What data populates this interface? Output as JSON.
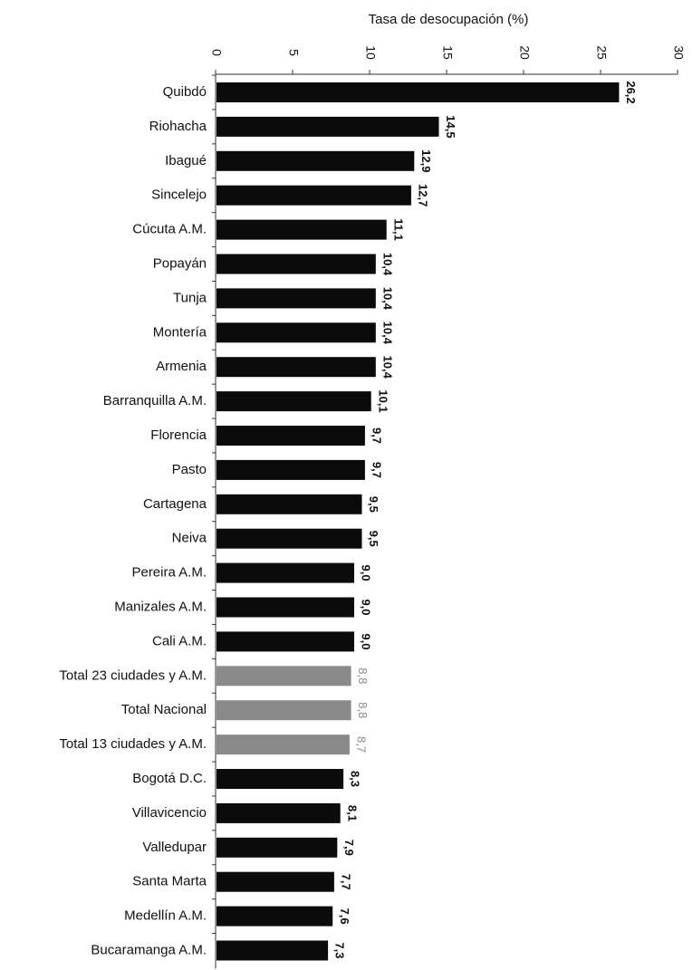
{
  "chart_data": {
    "type": "bar",
    "orientation": "horizontal",
    "xlabel": "Tasa de desocupación (%)",
    "ticks": [
      "0",
      "5",
      "10",
      "15",
      "20",
      "25",
      "30"
    ],
    "xlim": [
      0,
      30
    ],
    "categories": [
      "Quibdó",
      "Riohacha",
      "Ibagué",
      "Sincelejo",
      "Cúcuta A.M.",
      "Popayán",
      "Tunja",
      "Montería",
      "Armenia",
      "Barranquilla A.M.",
      "Florencia",
      "Pasto",
      "Cartagena",
      "Neiva",
      "Pereira A.M.",
      "Manizales A.M.",
      "Cali A.M.",
      "Total 23 ciudades y A.M.",
      "Total Nacional",
      "Total 13 ciudades y A.M.",
      "Bogotá D.C.",
      "Villavicencio",
      "Valledupar",
      "Santa Marta",
      "Medellín A.M.",
      "Bucaramanga A.M."
    ],
    "values": [
      26.2,
      14.5,
      12.9,
      12.7,
      11.1,
      10.4,
      10.4,
      10.4,
      10.4,
      10.1,
      9.7,
      9.7,
      9.5,
      9.5,
      9.0,
      9.0,
      9.0,
      8.8,
      8.8,
      8.7,
      8.3,
      8.1,
      7.9,
      7.7,
      7.6,
      7.3
    ],
    "value_labels": [
      "26,2",
      "14,5",
      "12,9",
      "12,7",
      "11,1",
      "10,4",
      "10,4",
      "10,4",
      "10,4",
      "10,1",
      "9,7",
      "9,7",
      "9,5",
      "9,5",
      "9,0",
      "9,0",
      "9,0",
      "8,8",
      "8,8",
      "8,7",
      "8,3",
      "8,1",
      "7,9",
      "7,7",
      "7,6",
      "7,3"
    ],
    "highlight": [
      false,
      false,
      false,
      false,
      false,
      false,
      false,
      false,
      false,
      false,
      false,
      false,
      false,
      false,
      false,
      false,
      false,
      true,
      true,
      true,
      false,
      false,
      false,
      false,
      false,
      false
    ],
    "colors": {
      "bar": "#0b0b0b",
      "highlight": "#8a8a8a",
      "label": "#111111",
      "highlight_label": "#8a8a8a",
      "axis": "#333333"
    },
    "grid": false
  }
}
